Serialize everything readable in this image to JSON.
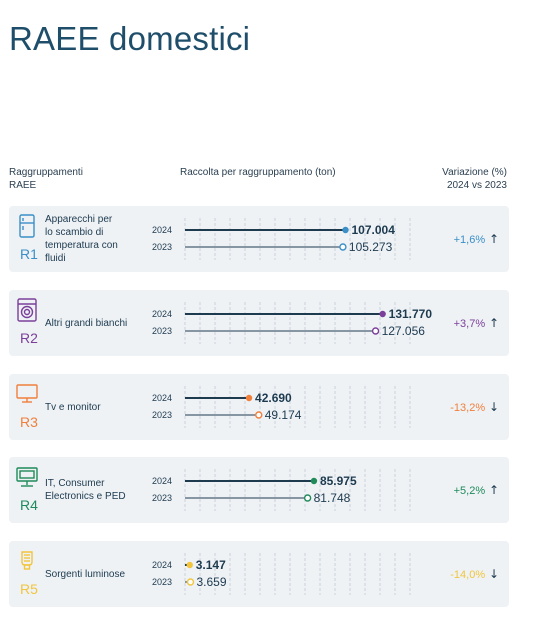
{
  "title": "RAEE domestici",
  "headers": {
    "left_line1": "Raggruppamenti",
    "left_line2": "RAEE",
    "middle": "Raccolta per raggruppamento (ton)",
    "right_line1": "Variazione (%)",
    "right_line2": "2024 vs 2023"
  },
  "icons": [
    "fridge-icon",
    "washing-machine-icon",
    "tv-icon",
    "computer-icon",
    "light-bulb-icon"
  ],
  "chart_data": {
    "type": "bar",
    "unit": "ton",
    "categories": [
      "Apparecchi per lo scambio di temperatura con fluidi",
      "Altri grandi bianchi",
      "Tv e monitor",
      "IT, Consumer Electronics e PED",
      "Sorgenti luminose"
    ],
    "codes": [
      "R1",
      "R2",
      "R3",
      "R4",
      "R5"
    ],
    "series": [
      {
        "name": "2024",
        "values": [
          107004,
          131770,
          42690,
          85975,
          3147
        ]
      },
      {
        "name": "2023",
        "values": [
          105273,
          127056,
          49174,
          81748,
          3659
        ]
      }
    ],
    "value_labels_2024": [
      "107.004",
      "131.770",
      "42.690",
      "85.975",
      "3.147"
    ],
    "value_labels_2023": [
      "105.273",
      "127.056",
      "49.174",
      "81.748",
      "3.659"
    ],
    "variation": [
      "+1,6%",
      "+3,7%",
      "-13,2%",
      "+5,2%",
      "-14,0%"
    ],
    "variation_direction": [
      "up",
      "up",
      "down",
      "up",
      "down"
    ],
    "colors": [
      "#3a8fc7",
      "#7b3f9a",
      "#f07f3c",
      "#1f8a5a",
      "#f2c53d"
    ],
    "xlim": [
      0,
      140000
    ],
    "grid": true
  },
  "rows": [
    {
      "code": "R1",
      "label_lines": [
        "Apparecchi per",
        "lo scambio di",
        "temperatura con",
        "fluidi"
      ],
      "year_a": "2024",
      "year_b": "2023"
    },
    {
      "code": "R2",
      "label_lines": [
        "Altri grandi bianchi"
      ],
      "year_a": "2024",
      "year_b": "2023"
    },
    {
      "code": "R3",
      "label_lines": [
        "Tv e monitor"
      ],
      "year_a": "2024",
      "year_b": "2023"
    },
    {
      "code": "R4",
      "label_lines": [
        "IT, Consumer",
        "Electronics e PED"
      ],
      "year_a": "2024",
      "year_b": "2023"
    },
    {
      "code": "R5",
      "label_lines": [
        "Sorgenti luminose"
      ],
      "year_a": "2024",
      "year_b": "2023"
    }
  ],
  "arrows": {
    "up": "↑",
    "down": "↓"
  }
}
